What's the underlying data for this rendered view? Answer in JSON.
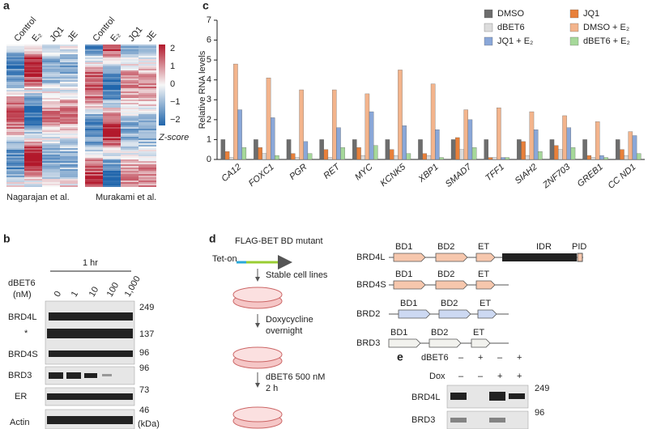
{
  "chart_data": {
    "type": "bar",
    "y_label": "Relative RNA levels",
    "categories": [
      "CA12",
      "FOXC1",
      "PGR",
      "RET",
      "MYC",
      "KCNK5",
      "XBP1",
      "SMAD7",
      "TFF1",
      "SIAH2",
      "ZNF703",
      "GREB1",
      "CC ND1"
    ],
    "series": [
      {
        "name": "DMSO",
        "color": "#6d6d6d",
        "values": [
          1,
          1,
          1,
          1,
          1,
          1,
          1,
          1,
          1,
          1,
          1,
          1,
          1
        ]
      },
      {
        "name": "JQ1",
        "color": "#e8803a",
        "values": [
          0.4,
          0.6,
          0.3,
          0.5,
          0.6,
          0.5,
          0.3,
          1.1,
          0.1,
          0.9,
          0.7,
          0.2,
          0.5
        ]
      },
      {
        "name": "dBET6",
        "color": "#dcdcdc",
        "values": [
          0.1,
          0.3,
          0.1,
          0.1,
          0.2,
          0.2,
          0.2,
          0.5,
          0.1,
          0.2,
          0.5,
          0.1,
          0.2
        ]
      },
      {
        "name": "DMSO + E₂",
        "color": "#f3b48c",
        "values": [
          4.8,
          4.1,
          3.5,
          3.5,
          3.3,
          4.5,
          3.8,
          2.5,
          2.6,
          2.4,
          2.2,
          1.9,
          1.4
        ]
      },
      {
        "name": "JQ1 + E₂",
        "color": "#8aa7d8",
        "values": [
          2.5,
          2.1,
          0.9,
          1.6,
          2.4,
          1.7,
          1.5,
          2,
          0.1,
          1.5,
          1.6,
          0.2,
          1.2
        ]
      },
      {
        "name": "dBET6 + E₂",
        "color": "#a6d89a",
        "values": [
          0.6,
          0.2,
          0.3,
          0.6,
          0.7,
          0.3,
          0.1,
          0.6,
          0.1,
          0.4,
          0.6,
          0.1,
          0.3
        ]
      }
    ],
    "ylim": [
      0,
      7
    ],
    "yticks": [
      0,
      1,
      2,
      3,
      4,
      5,
      6,
      7
    ]
  },
  "panel_labels": [
    "a",
    "b",
    "c",
    "d",
    "e"
  ],
  "panel_a": {
    "columns": [
      "Control",
      "E₂",
      "JQ1",
      "JE"
    ],
    "datasets": [
      "Nagarajan et al.",
      "Murakami et al."
    ],
    "colorbar": {
      "ticks": [
        "2",
        "1",
        "0",
        "−1",
        "−2"
      ],
      "label": "Z-score"
    }
  },
  "panel_b": {
    "time": "1 hr",
    "treatment": "dBET6",
    "unit": "(nM)",
    "lanes": [
      "0",
      "1",
      "10",
      "100",
      "1,000"
    ],
    "proteins": [
      "BRD4L",
      "*",
      "BRD4S",
      "BRD3",
      "ER",
      "Actin"
    ],
    "markers": [
      "249",
      "137",
      "96",
      "96",
      "73",
      "46"
    ],
    "marker_unit": "(kDa)"
  },
  "panel_d": {
    "construct": "FLAG-BET BD mutant",
    "promoter": "Tet-on",
    "steps": [
      "Stable cell lines",
      "Doxycycline",
      "overnight",
      "dBET6 500 nM",
      "2 h"
    ],
    "proteins": [
      {
        "name": "BRD4L",
        "domains": [
          "BD1",
          "BD2",
          "ET",
          "IDR",
          "PID"
        ]
      },
      {
        "name": "BRD4S",
        "domains": [
          "BD1",
          "BD2",
          "ET"
        ]
      },
      {
        "name": "BRD2",
        "domains": [
          "BD1",
          "BD2",
          "ET"
        ]
      },
      {
        "name": "BRD3",
        "domains": [
          "BD1",
          "BD2",
          "ET"
        ]
      }
    ]
  },
  "panel_e": {
    "rows": [
      {
        "name": "dBET6",
        "signs": [
          "–",
          "+",
          "–",
          "+"
        ]
      },
      {
        "name": "Dox",
        "signs": [
          "–",
          "–",
          "+",
          "+"
        ]
      }
    ],
    "proteins": [
      "BRD4L",
      "BRD3"
    ],
    "markers": [
      "249",
      "96"
    ]
  }
}
